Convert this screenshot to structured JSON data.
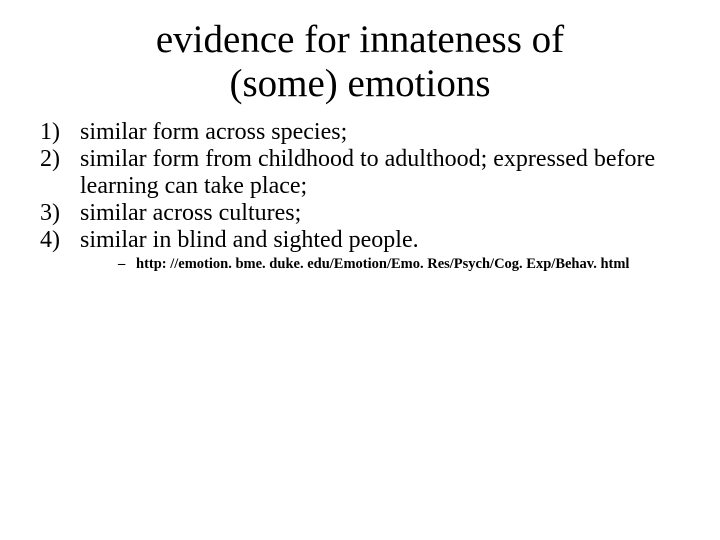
{
  "title_line1": "evidence for innateness of",
  "title_line2": "(some) emotions",
  "items": [
    "similar form across species;",
    "similar form from childhood to adulthood; expressed before learning can take place;",
    "similar across cultures;",
    "similar in blind and sighted people."
  ],
  "reference": "http: //emotion. bme. duke. edu/Emotion/Emo. Res/Psych/Cog. Exp/Behav. html",
  "colors": {
    "background": "#ffffff",
    "text": "#000000"
  },
  "fonts": {
    "family": "Times New Roman",
    "title_size_pt": 30,
    "body_size_pt": 18,
    "ref_size_pt": 11
  }
}
